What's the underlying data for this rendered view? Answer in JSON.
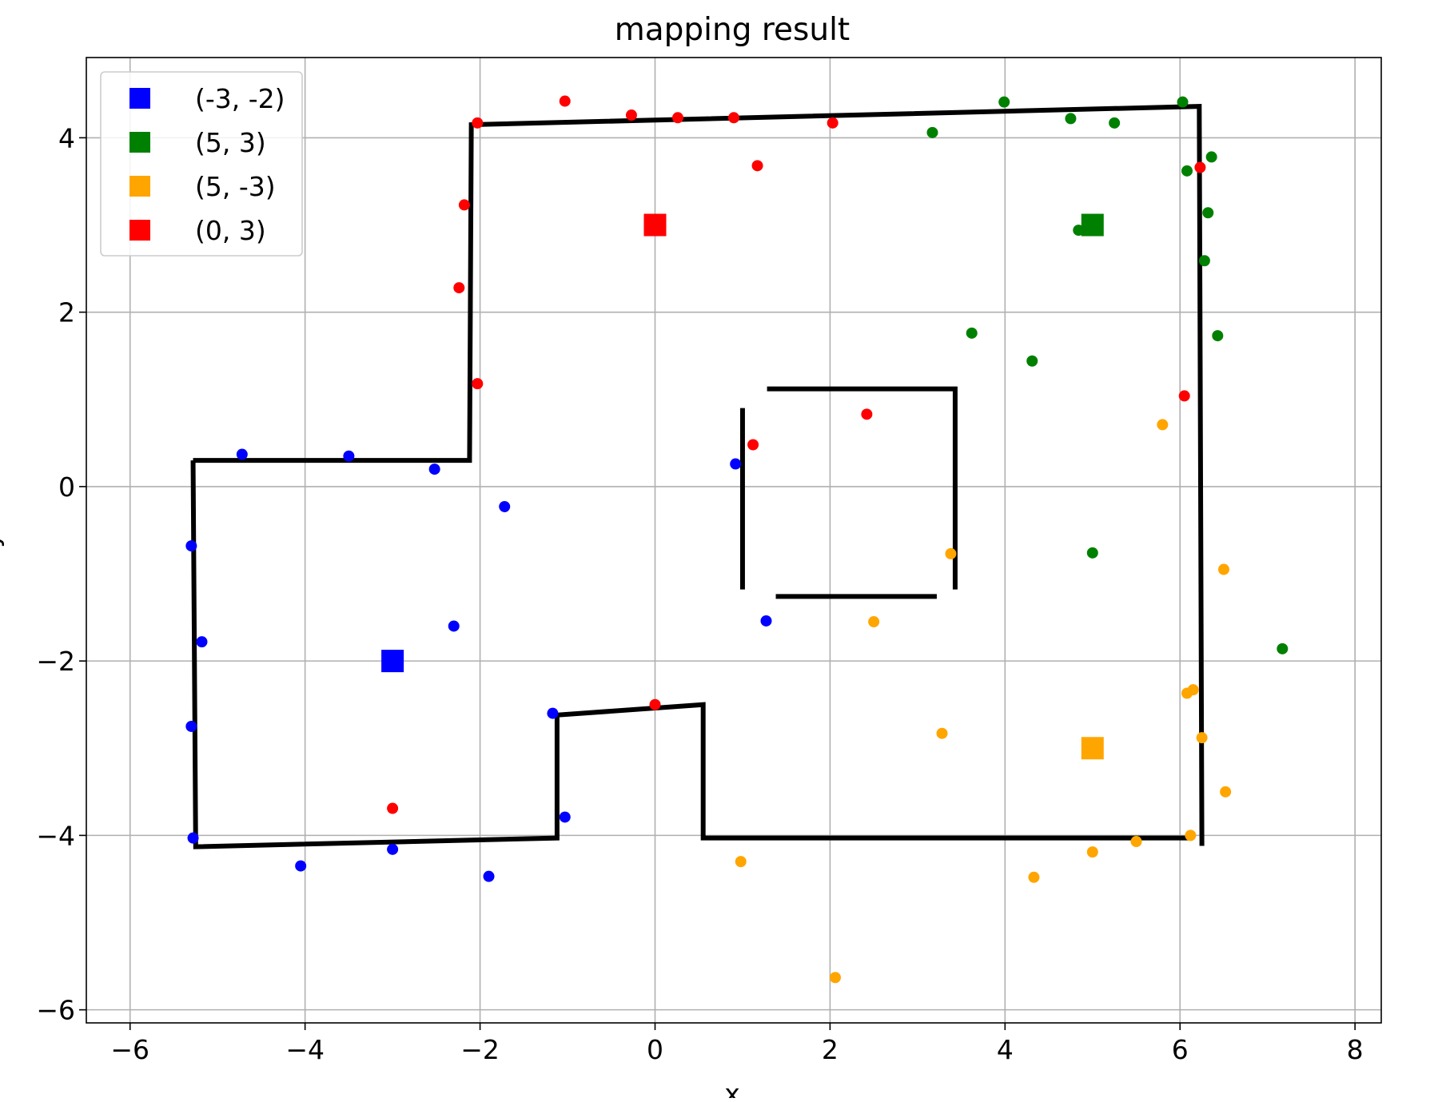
{
  "chart_data": {
    "type": "scatter",
    "title": "mapping result",
    "xlabel": "x",
    "ylabel": "y",
    "xlim": [
      -6.5,
      8.3
    ],
    "ylim": [
      -6.15,
      4.92
    ],
    "xticks": [
      -6,
      -4,
      -2,
      0,
      2,
      4,
      6,
      8
    ],
    "yticks": [
      -6,
      -4,
      -2,
      0,
      2,
      4
    ],
    "xtick_labels": [
      "−6",
      "−4",
      "−2",
      "0",
      "2",
      "4",
      "6",
      "8"
    ],
    "ytick_labels": [
      "−6",
      "−4",
      "−2",
      "0",
      "2",
      "4"
    ],
    "grid": true,
    "legend_position": "top-left",
    "series": [
      {
        "name": "(-3, -2)",
        "color": "#0000ff",
        "landmark": [
          -3,
          -2
        ],
        "points": [
          [
            -4.72,
            0.37
          ],
          [
            -3.5,
            0.35
          ],
          [
            -2.52,
            0.2
          ],
          [
            -1.72,
            -0.23
          ],
          [
            0.92,
            0.26
          ],
          [
            -5.3,
            -0.68
          ],
          [
            -5.18,
            -1.78
          ],
          [
            -2.3,
            -1.6
          ],
          [
            1.27,
            -1.54
          ],
          [
            -5.3,
            -2.75
          ],
          [
            -1.17,
            -2.6
          ],
          [
            -5.28,
            -4.03
          ],
          [
            -1.03,
            -3.79
          ],
          [
            -3.0,
            -4.16
          ],
          [
            -4.05,
            -4.35
          ],
          [
            -1.9,
            -4.47
          ]
        ]
      },
      {
        "name": "(5, 3)",
        "color": "#008000",
        "landmark": [
          5,
          3
        ],
        "points": [
          [
            3.17,
            4.06
          ],
          [
            3.99,
            4.41
          ],
          [
            4.75,
            4.22
          ],
          [
            5.25,
            4.17
          ],
          [
            6.03,
            4.41
          ],
          [
            6.08,
            3.62
          ],
          [
            6.36,
            3.78
          ],
          [
            6.32,
            3.14
          ],
          [
            4.84,
            2.94
          ],
          [
            6.28,
            2.59
          ],
          [
            3.62,
            1.76
          ],
          [
            4.31,
            1.44
          ],
          [
            6.43,
            1.73
          ],
          [
            5.0,
            -0.76
          ],
          [
            7.17,
            -1.86
          ]
        ]
      },
      {
        "name": "(5, -3)",
        "color": "#ffa500",
        "landmark": [
          5,
          -3
        ],
        "points": [
          [
            5.8,
            0.71
          ],
          [
            3.38,
            -0.77
          ],
          [
            6.5,
            -0.95
          ],
          [
            2.5,
            -1.55
          ],
          [
            6.08,
            -2.37
          ],
          [
            6.15,
            -2.33
          ],
          [
            3.28,
            -2.83
          ],
          [
            6.25,
            -2.88
          ],
          [
            6.52,
            -3.5
          ],
          [
            6.12,
            -4.0
          ],
          [
            5.5,
            -4.07
          ],
          [
            5.0,
            -4.19
          ],
          [
            0.98,
            -4.3
          ],
          [
            4.33,
            -4.48
          ],
          [
            2.06,
            -5.63
          ]
        ]
      },
      {
        "name": "(0, 3)",
        "color": "#ff0000",
        "landmark": [
          0,
          3
        ],
        "points": [
          [
            -1.03,
            4.42
          ],
          [
            -0.27,
            4.26
          ],
          [
            0.26,
            4.23
          ],
          [
            0.9,
            4.23
          ],
          [
            2.03,
            4.17
          ],
          [
            -2.03,
            4.17
          ],
          [
            1.17,
            3.68
          ],
          [
            6.23,
            3.66
          ],
          [
            -2.18,
            3.23
          ],
          [
            -2.24,
            2.28
          ],
          [
            -2.03,
            1.18
          ],
          [
            6.05,
            1.04
          ],
          [
            2.42,
            0.83
          ],
          [
            1.12,
            0.48
          ],
          [
            0.0,
            -2.5
          ],
          [
            -3.0,
            -3.69
          ]
        ]
      }
    ],
    "walls": [
      [
        [
          -5.28,
          0.3
        ],
        [
          -2.12,
          0.3
        ],
        [
          -2.1,
          4.15
        ],
        [
          6.22,
          4.36
        ],
        [
          6.25,
          -4.12
        ]
      ],
      [
        [
          -5.28,
          0.3
        ],
        [
          -5.25,
          -4.13
        ],
        [
          -1.12,
          -4.03
        ],
        [
          -1.12,
          -2.62
        ],
        [
          0.55,
          -2.5
        ],
        [
          0.55,
          -4.03
        ],
        [
          6.12,
          -4.03
        ]
      ],
      [
        [
          1.0,
          0.9
        ],
        [
          1.0,
          -1.18
        ]
      ],
      [
        [
          1.28,
          1.12
        ],
        [
          3.43,
          1.12
        ],
        [
          3.43,
          -1.18
        ]
      ],
      [
        [
          1.38,
          -1.26
        ],
        [
          3.22,
          -1.26
        ]
      ]
    ]
  }
}
